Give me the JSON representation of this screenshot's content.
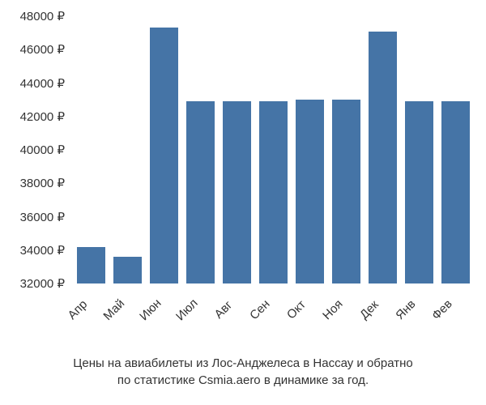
{
  "chart": {
    "type": "bar",
    "categories": [
      "Апр",
      "Май",
      "Июн",
      "Июл",
      "Авг",
      "Сен",
      "Окт",
      "Ноя",
      "Дек",
      "Янв",
      "Фев"
    ],
    "values": [
      34200,
      33600,
      47300,
      42900,
      42900,
      42900,
      43000,
      43000,
      47100,
      42900,
      42900
    ],
    "bar_color": "#4574a6",
    "ylim": [
      32000,
      48000
    ],
    "ytick_step": 2000,
    "ytick_labels": [
      "32000 ₽",
      "34000 ₽",
      "36000 ₽",
      "38000 ₽",
      "40000 ₽",
      "42000 ₽",
      "44000 ₽",
      "46000 ₽",
      "48000 ₽"
    ],
    "label_fontsize": 15,
    "x_label_rotation": -45,
    "background_color": "#ffffff",
    "text_color": "#333333"
  },
  "caption": {
    "line1": "Цены на авиабилеты из Лос-Анджелеса в Нассау и обратно",
    "line2": "по статистике Csmia.aero в динамике за год."
  }
}
